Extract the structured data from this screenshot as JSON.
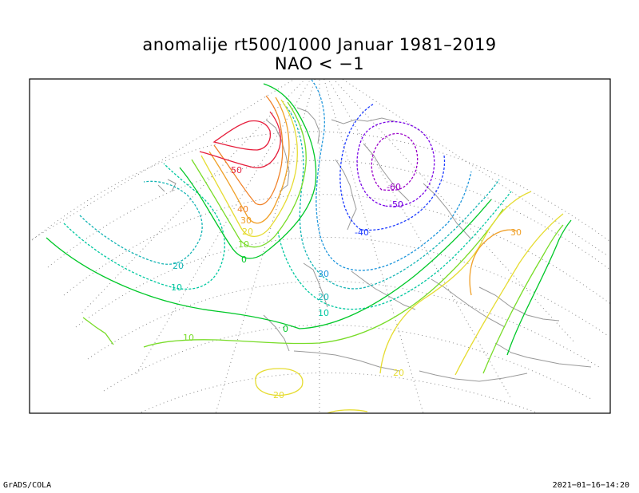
{
  "title": "anomalije rt500/1000 Januar 1981–2019",
  "subtitle": "NAO < −1",
  "footer_left": "GrADS/COLA",
  "footer_right": "2021−01−16−14:20",
  "colors": {
    "c_neg60": "#9a00c8",
    "c_neg50": "#7800e6",
    "c_neg40": "#1e3cff",
    "c_neg30": "#1e96dc",
    "c_neg20": "#14b4b4",
    "c_neg10": "#00c8a0",
    "c_0": "#00c828",
    "c_10": "#78dc28",
    "c_20": "#e6dc32",
    "c_30": "#f0a028",
    "c_40": "#f08228",
    "c_50": "#e61e3c",
    "coast": "#999999",
    "grid": "#888888"
  },
  "contour_labels": {
    "l50": "50",
    "l40": "40",
    "l30": "30",
    "l20": "20",
    "l10": "10",
    "l0": "0",
    "lm20": "20",
    "lm10": "10",
    "l10b": "10",
    "l20c": "20",
    "l0b": "0",
    "lm30": "30",
    "lm20b": "20",
    "lm10b": "10",
    "lm40": "-40",
    "lm60": "-60",
    "lm50": "-50",
    "l30e": "30",
    "l20e": "20",
    "l20s": "20"
  }
}
